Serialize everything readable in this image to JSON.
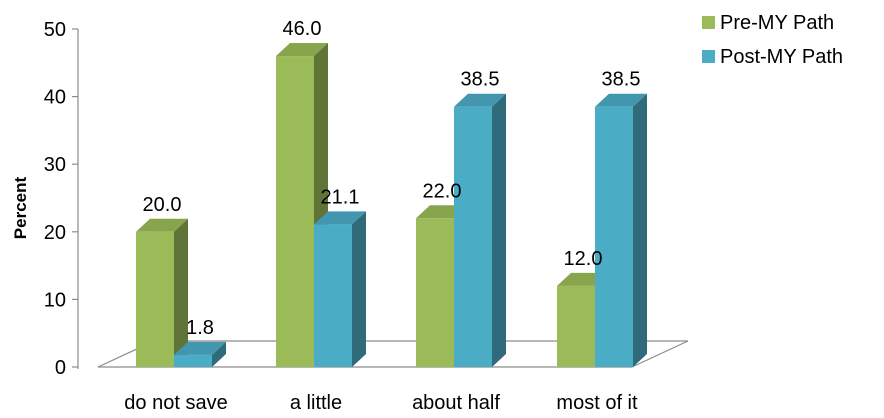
{
  "chart_data": {
    "type": "bar",
    "title": "",
    "xlabel": "",
    "ylabel": "Percent",
    "ylim": [
      0,
      50
    ],
    "yticks": [
      0,
      10,
      20,
      30,
      40,
      50
    ],
    "categories": [
      "do not save",
      "a little",
      "about half",
      "most of it"
    ],
    "series": [
      {
        "name": "Pre-MY Path",
        "values": [
          20.0,
          46.0,
          22.0,
          12.0
        ],
        "labels": [
          "20.0",
          "46.0",
          "22.0",
          "12.0"
        ],
        "color": "#9BBB59"
      },
      {
        "name": "Post-MY Path",
        "values": [
          1.8,
          21.1,
          38.5,
          38.5
        ],
        "labels": [
          "1.8",
          "21.1",
          "38.5",
          "38.5"
        ],
        "color": "#4BACC6"
      }
    ],
    "legend": "right",
    "grid": false,
    "style": "3d-clustered-column"
  }
}
